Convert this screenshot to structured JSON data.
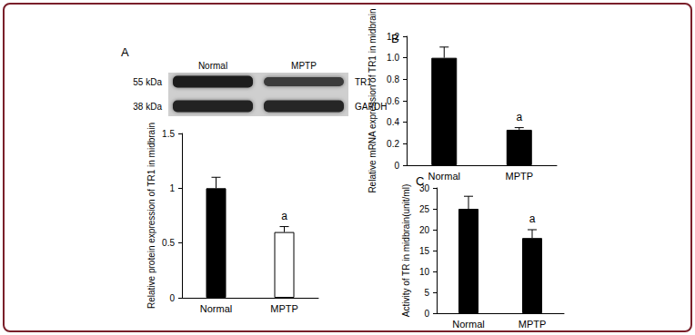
{
  "chart_data": [
    {
      "panel_label": "A",
      "type": "bar",
      "categories": [
        "Normal",
        "MPTP"
      ],
      "values": [
        1,
        0.6
      ],
      "errors": [
        0.1,
        0.05
      ],
      "colors": [
        "#000000",
        "#ffffff"
      ],
      "y_label": "Relative protein expression of TR1 in midbrain",
      "ylim": [
        0,
        1.5
      ],
      "yticks": [
        0,
        0.5,
        1,
        1.5
      ],
      "annotations": [
        {
          "text": "a",
          "category": "MPTP"
        }
      ]
    },
    {
      "panel_label": "B",
      "type": "bar",
      "categories": [
        "Normal",
        "MPTP"
      ],
      "values": [
        1,
        0.33
      ],
      "errors": [
        0.1,
        0.02
      ],
      "color": "#000000",
      "y_label": "Relative mRNA expression of TR1 in midbrain",
      "ylim": [
        0,
        1.2
      ],
      "yticks": [
        0,
        0.2,
        0.4,
        0.6,
        0.8,
        {
          "value": 1,
          "label": "1.0"
        },
        1.2
      ],
      "annotations": [
        {
          "text": "a",
          "category": "MPTP"
        }
      ]
    },
    {
      "panel_label": "C",
      "type": "bar",
      "categories": [
        "Normal",
        "MPTP"
      ],
      "values": [
        25,
        18
      ],
      "errors": [
        3,
        2
      ],
      "color": "#000000",
      "y_label": "Activity of TR in midbrain(unit/ml)",
      "ylim": [
        0,
        30
      ],
      "yticks": [
        0,
        5,
        10,
        15,
        20,
        25,
        30
      ],
      "annotations": [
        {
          "text": "a",
          "category": "MPTP"
        }
      ]
    }
  ],
  "blot": {
    "lanes": [
      "Normal",
      "MPTP"
    ],
    "bands": [
      {
        "name": "TR1",
        "size": "55 kDa"
      },
      {
        "name": "GAPDH",
        "size": "38 kDa"
      }
    ]
  }
}
